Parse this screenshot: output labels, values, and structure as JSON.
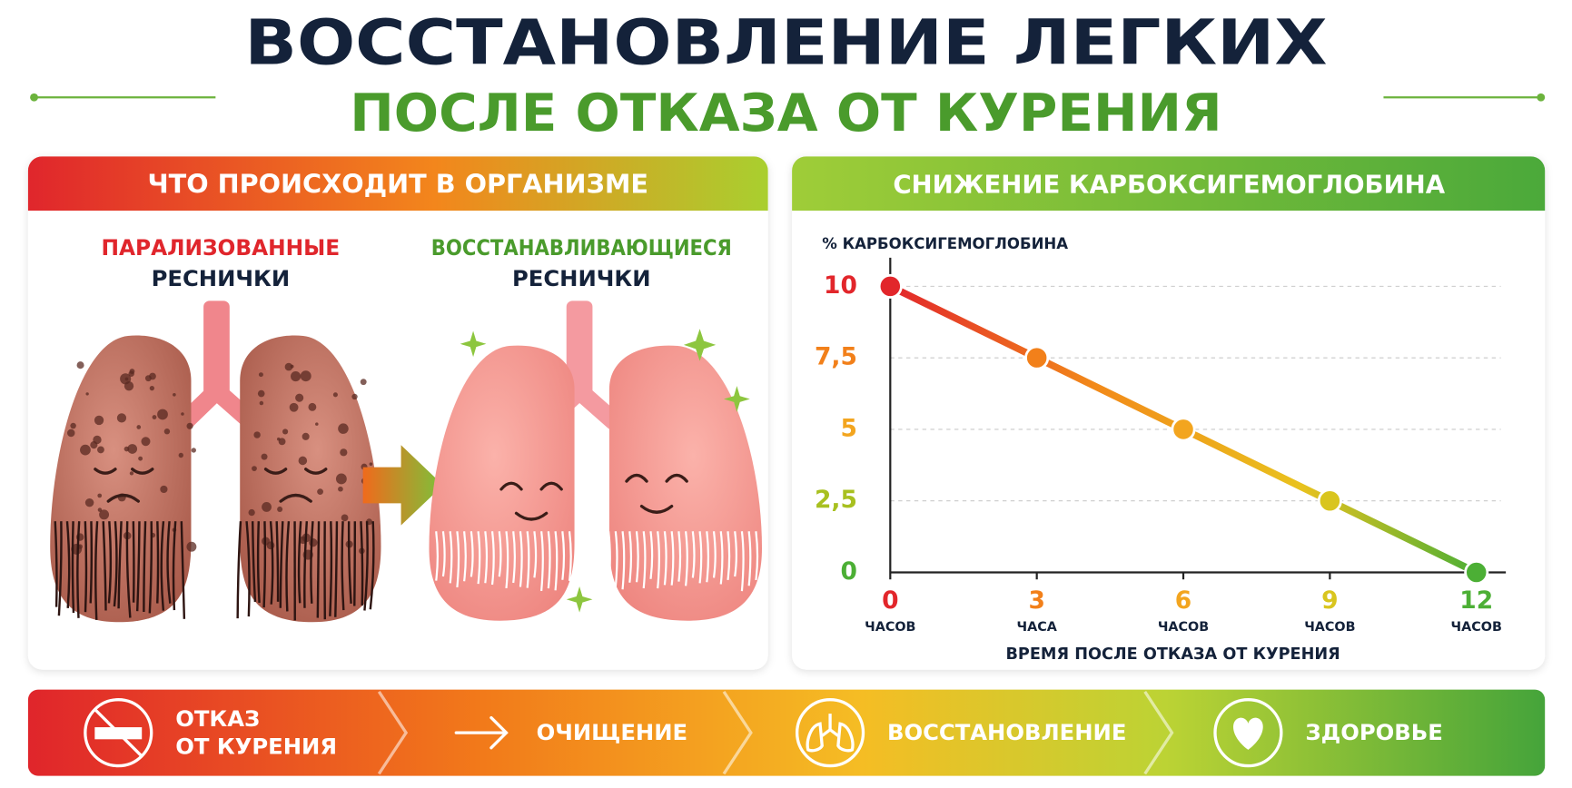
{
  "header": {
    "title": "ВОССТАНОВЛЕНИЕ ЛЕГКИХ",
    "subtitle": "ПОСЛЕ ОТКАЗА ОТ КУРЕНИЯ"
  },
  "left_panel": {
    "title": "ЧТО ПРОИСХОДИТ В ОРГАНИЗМЕ",
    "before": [
      "ПАРАЛИЗОВАННЫЕ",
      "РЕСНИЧКИ"
    ],
    "after": [
      "ВОССТАНАВЛИВАЮЩИЕСЯ",
      "РЕСНИЧКИ"
    ]
  },
  "chart_data": {
    "type": "line",
    "title": "СНИЖЕНИЕ КАРБОКСИГЕМОГЛОБИНА",
    "y_label": "% КАРБОКСИГЕМОГЛОБИНА",
    "x_label": "ВРЕМЯ ПОСЛЕ ОТКАЗА ОТ КУРЕНИЯ",
    "x": [
      0,
      3,
      6,
      9,
      12
    ],
    "series": [
      {
        "values": [
          10,
          7.5,
          5,
          2.5,
          0
        ],
        "point_colors": [
          "#e2262b",
          "#f2801a",
          "#f3a51f",
          "#d9c51e",
          "#4caf35"
        ]
      }
    ],
    "xlim": [
      0,
      12.5
    ],
    "ylim": [
      0,
      11
    ],
    "xticks": [
      0,
      3,
      6,
      9,
      12
    ],
    "x_tick_units": [
      "ЧАСОВ",
      "ЧАСА",
      "ЧАСОВ",
      "ЧАСОВ",
      "ЧАСОВ"
    ],
    "xtick_colors": [
      "#e2262b",
      "#f2801a",
      "#f3a51f",
      "#d9c51e",
      "#4caf35"
    ],
    "yticks": [
      0,
      {
        "value": 2.5,
        "label": "2,5"
      },
      5,
      {
        "value": 7.5,
        "label": "7,5"
      },
      10
    ],
    "ytick_colors": [
      "#4caf35",
      "#a8c020",
      "#f3a51f",
      "#f2801a",
      "#e2262b"
    ],
    "grid": true
  },
  "steps": [
    {
      "label": [
        "ОТКАЗ",
        "ОТ КУРЕНИЯ"
      ]
    },
    {
      "label": [
        "ОЧИЩЕНИЕ"
      ]
    },
    {
      "label": [
        "ВОССТАНОВЛЕНИЕ"
      ]
    },
    {
      "label": [
        "ЗДОРОВЬЕ"
      ]
    }
  ]
}
